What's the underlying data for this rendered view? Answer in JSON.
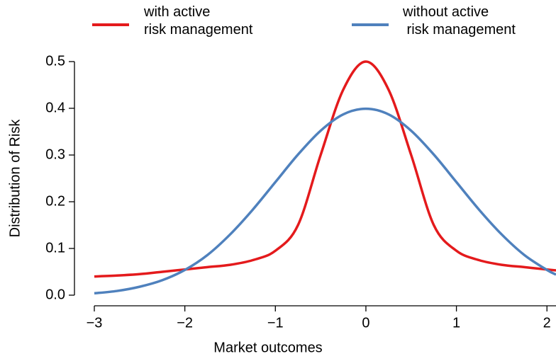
{
  "chart_data": {
    "type": "line",
    "x_label": "Market outcomes",
    "y_label": "Distribution of Risk",
    "x": [
      -3,
      -2.75,
      -2.5,
      -2.25,
      -2,
      -1.75,
      -1.5,
      -1.25,
      -1,
      -0.75,
      -0.5,
      -0.25,
      0,
      0.25,
      0.5,
      0.75,
      1,
      1.25,
      1.5,
      1.75,
      2,
      2.1
    ],
    "series": [
      {
        "name": "with active\nrisk management",
        "color": "#e41a1c",
        "values": [
          0.04,
          0.042,
          0.045,
          0.05,
          0.055,
          0.06,
          0.065,
          0.075,
          0.095,
          0.15,
          0.3,
          0.44,
          0.5,
          0.44,
          0.3,
          0.15,
          0.095,
          0.075,
          0.065,
          0.06,
          0.055,
          0.053
        ]
      },
      {
        "name": "without active\n risk management",
        "color": "#4f81bd",
        "values": [
          0.004,
          0.009,
          0.018,
          0.032,
          0.054,
          0.086,
          0.13,
          0.183,
          0.242,
          0.301,
          0.352,
          0.387,
          0.399,
          0.387,
          0.352,
          0.301,
          0.242,
          0.183,
          0.13,
          0.086,
          0.054,
          0.044
        ]
      }
    ],
    "xlim": [
      -3,
      2.1
    ],
    "ylim": [
      0,
      0.5
    ],
    "xticks": [
      {
        "value": -3,
        "label": "−3"
      },
      {
        "value": -2,
        "label": "−2"
      },
      {
        "value": -1,
        "label": "−1"
      },
      0,
      1,
      2
    ],
    "yticks": [
      {
        "value": 0,
        "label": "0.0"
      },
      0.1,
      0.2,
      0.3,
      0.4,
      0.5
    ],
    "grid": false,
    "legend": "top"
  }
}
